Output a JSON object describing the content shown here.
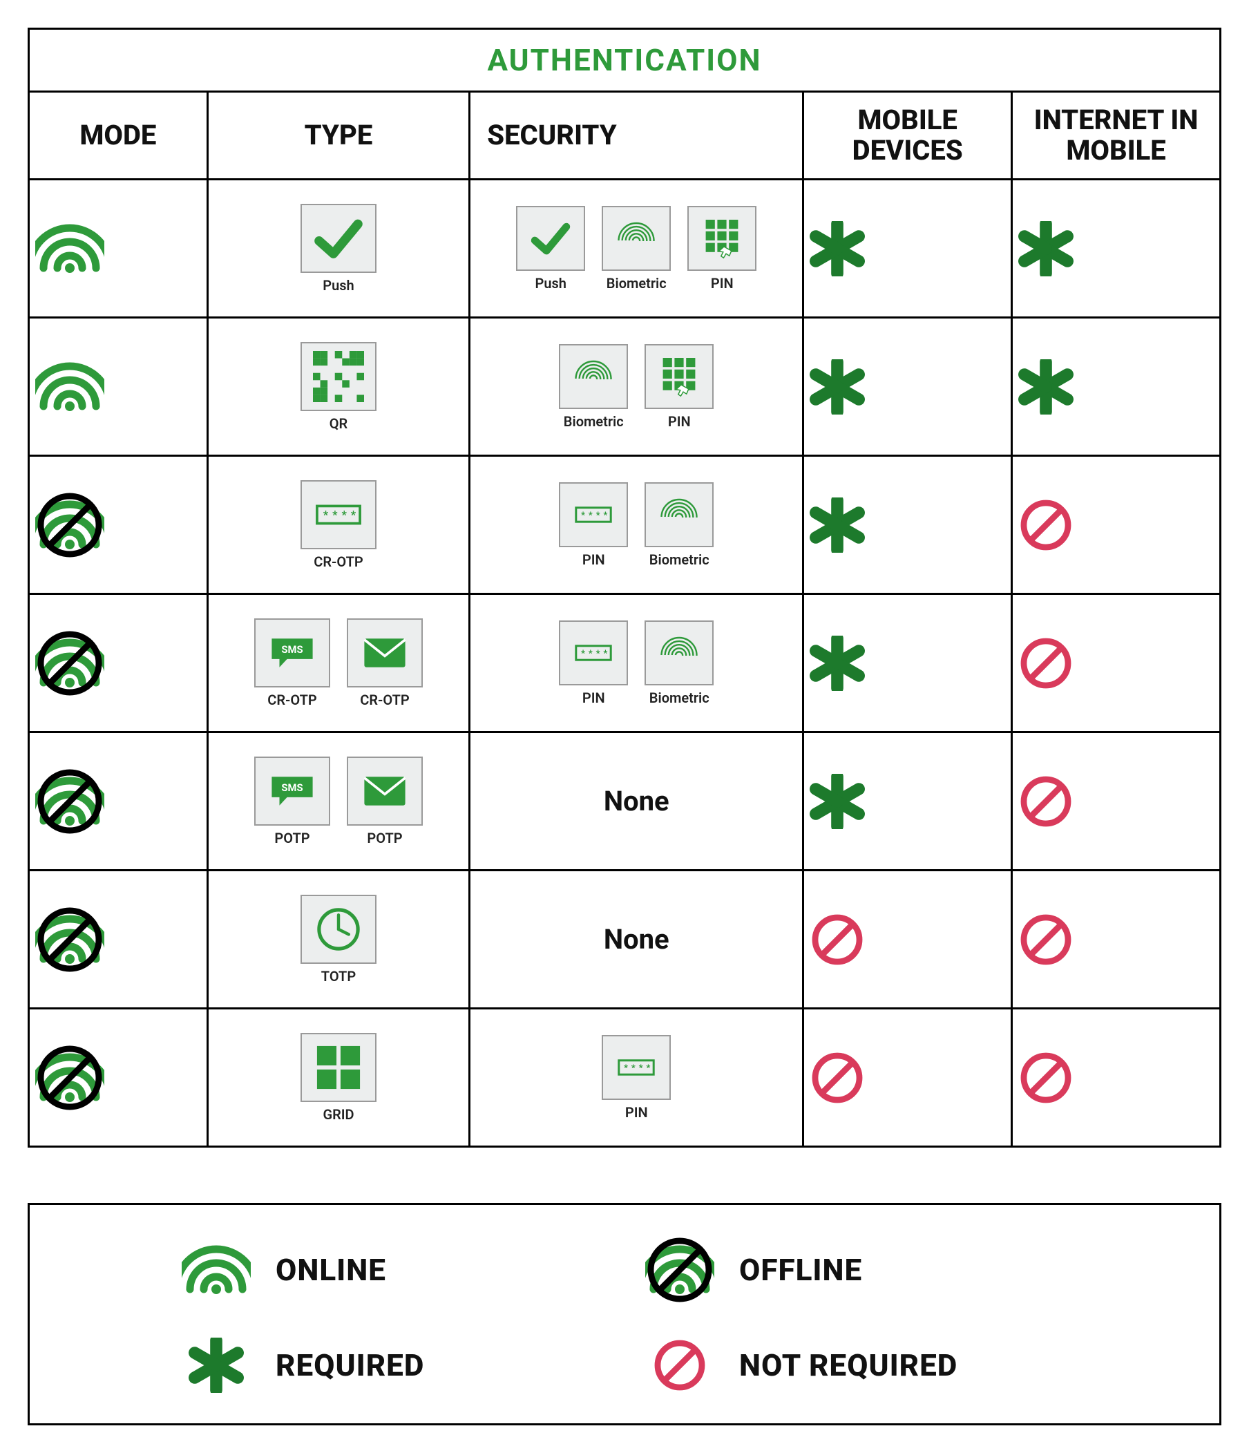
{
  "colors": {
    "green": "#2e9a3a",
    "green_dark": "#1d7a2c",
    "red": "#d93a5b",
    "black": "#000000",
    "tile_bg": "#eceeee",
    "tile_border": "#9a9a9a"
  },
  "title": "AUTHENTICATION",
  "headers": {
    "mode": "MODE",
    "type": "TYPE",
    "security": "SECURITY",
    "mobile": "MOBILE DEVICES",
    "internet": "INTERNET IN MOBILE"
  },
  "col_widths_pct": [
    15,
    22,
    28,
    17.5,
    17.5
  ],
  "icons": {
    "push": {
      "label": "Push",
      "glyph": "check"
    },
    "qr": {
      "label": "QR",
      "glyph": "qr"
    },
    "biometric": {
      "label": "Biometric",
      "glyph": "fingerprint"
    },
    "pin_grid": {
      "label": "PIN",
      "glyph": "keypad"
    },
    "pin_field": {
      "label": "PIN",
      "glyph": "pinfield"
    },
    "crotp": {
      "label": "CR-OTP",
      "glyph": "pinfield"
    },
    "crotp_sms": {
      "label": "CR-OTP",
      "glyph": "sms"
    },
    "crotp_mail": {
      "label": "CR-OTP",
      "glyph": "mail"
    },
    "potp_sms": {
      "label": "POTP",
      "glyph": "sms"
    },
    "potp_mail": {
      "label": "POTP",
      "glyph": "mail"
    },
    "totp": {
      "label": "TOTP",
      "glyph": "clock"
    },
    "grid": {
      "label": "GRID",
      "glyph": "grid4"
    }
  },
  "rows": [
    {
      "mode": "online",
      "type": [
        "push"
      ],
      "security": [
        "push",
        "biometric",
        "pin_grid"
      ],
      "mobile": "required",
      "internet": "required"
    },
    {
      "mode": "online",
      "type": [
        "qr"
      ],
      "security": [
        "biometric",
        "pin_grid"
      ],
      "mobile": "required",
      "internet": "required"
    },
    {
      "mode": "offline",
      "type": [
        "crotp"
      ],
      "security": [
        "pin_field",
        "biometric"
      ],
      "mobile": "required",
      "internet": "not_required"
    },
    {
      "mode": "offline",
      "type": [
        "crotp_sms",
        "crotp_mail"
      ],
      "security": [
        "pin_field",
        "biometric"
      ],
      "mobile": "required",
      "internet": "not_required"
    },
    {
      "mode": "offline",
      "type": [
        "potp_sms",
        "potp_mail"
      ],
      "security": "None",
      "mobile": "required",
      "internet": "not_required"
    },
    {
      "mode": "offline",
      "type": [
        "totp"
      ],
      "security": "None",
      "mobile": "not_required",
      "internet": "not_required"
    },
    {
      "mode": "offline",
      "type": [
        "grid"
      ],
      "security": [
        "pin_field"
      ],
      "mobile": "not_required",
      "internet": "not_required"
    }
  ],
  "legend": {
    "online": "ONLINE",
    "offline": "OFFLINE",
    "required": "REQUIRED",
    "not_required": "NOT REQUIRED"
  }
}
